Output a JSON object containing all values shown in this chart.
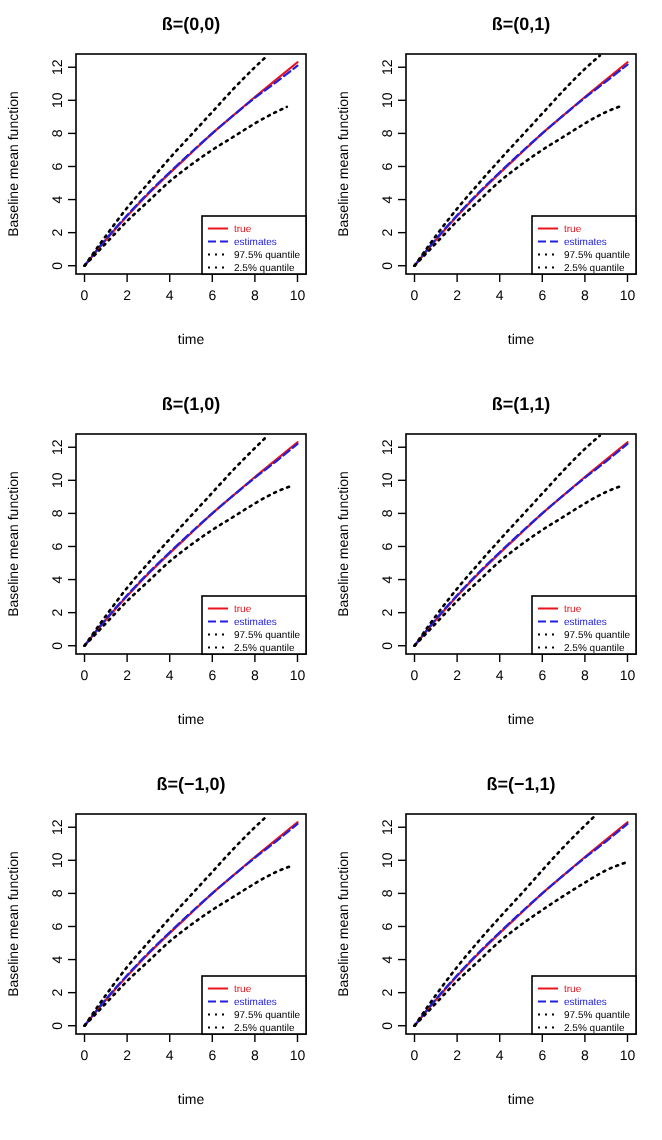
{
  "chart_data": [
    {
      "type": "line",
      "title": "ß=(0,0)",
      "xlabel": "time",
      "ylabel": "Baseline mean function",
      "xlim": [
        -0.4,
        10.4
      ],
      "ylim": [
        -0.5,
        12.8
      ],
      "xticks": [
        0,
        2,
        4,
        6,
        8,
        10
      ],
      "yticks": [
        0,
        2,
        4,
        6,
        8,
        10,
        12
      ],
      "legend": "bottom right",
      "series": [
        {
          "name": "true",
          "color": "#e8141c",
          "line_style": "solid",
          "x": [
            0,
            1,
            2,
            3,
            4,
            5,
            6,
            7,
            8,
            9,
            10
          ],
          "values": [
            0,
            1.55,
            3.0,
            4.35,
            5.6,
            6.8,
            8.0,
            9.1,
            10.2,
            11.25,
            12.3
          ]
        },
        {
          "name": "estimates",
          "color": "#2020e0",
          "line_style": "dashed",
          "x": [
            0,
            1,
            2,
            3,
            4,
            5,
            6,
            7,
            8,
            9,
            10
          ],
          "values": [
            0,
            1.6,
            3.05,
            4.4,
            5.65,
            6.85,
            8.0,
            9.1,
            10.15,
            11.1,
            12.1
          ]
        },
        {
          "name": "97.5% quantile",
          "color": "#000000",
          "line_style": "dotted",
          "x": [
            0,
            1,
            2,
            3,
            4,
            5,
            6,
            7,
            8,
            8.5
          ],
          "values": [
            0,
            1.8,
            3.5,
            5.0,
            6.5,
            7.9,
            9.3,
            10.7,
            12.0,
            12.6
          ]
        },
        {
          "name": "2.5% quantile",
          "color": "#000000",
          "line_style": "dotted",
          "x": [
            0,
            1,
            2,
            3,
            4,
            5,
            6,
            7,
            8,
            9,
            9.5
          ],
          "values": [
            0,
            1.35,
            2.7,
            3.9,
            5.1,
            6.1,
            7.0,
            7.8,
            8.6,
            9.3,
            9.6
          ]
        }
      ]
    },
    {
      "type": "line",
      "title": "ß=(0,1)",
      "xlabel": "time",
      "ylabel": "Baseline mean function",
      "xlim": [
        -0.4,
        10.4
      ],
      "ylim": [
        -0.5,
        12.8
      ],
      "xticks": [
        0,
        2,
        4,
        6,
        8,
        10
      ],
      "yticks": [
        0,
        2,
        4,
        6,
        8,
        10,
        12
      ],
      "legend": "bottom right",
      "series": [
        {
          "name": "true",
          "color": "#e8141c",
          "line_style": "solid",
          "x": [
            0,
            1,
            2,
            3,
            4,
            5,
            6,
            7,
            8,
            9,
            10
          ],
          "values": [
            0,
            1.55,
            3.0,
            4.35,
            5.6,
            6.8,
            8.0,
            9.1,
            10.2,
            11.25,
            12.3
          ]
        },
        {
          "name": "estimates",
          "color": "#2020e0",
          "line_style": "dashed",
          "x": [
            0,
            1,
            2,
            3,
            4,
            5,
            6,
            7,
            8,
            9,
            10
          ],
          "values": [
            0,
            1.6,
            3.05,
            4.4,
            5.65,
            6.85,
            8.0,
            9.1,
            10.15,
            11.15,
            12.15
          ]
        },
        {
          "name": "97.5% quantile",
          "color": "#000000",
          "line_style": "dotted",
          "x": [
            0,
            1,
            2,
            3,
            4,
            5,
            6,
            7,
            8,
            8.7
          ],
          "values": [
            0,
            1.8,
            3.45,
            4.95,
            6.4,
            7.8,
            9.2,
            10.6,
            11.9,
            12.7
          ]
        },
        {
          "name": "2.5% quantile",
          "color": "#000000",
          "line_style": "dotted",
          "x": [
            0,
            1,
            2,
            3,
            4,
            5,
            6,
            7,
            8,
            9,
            9.8
          ],
          "values": [
            0,
            1.35,
            2.7,
            3.9,
            5.1,
            6.1,
            7.0,
            7.8,
            8.6,
            9.3,
            9.7
          ]
        }
      ]
    },
    {
      "type": "line",
      "title": "ß=(1,0)",
      "xlabel": "time",
      "ylabel": "Baseline mean function",
      "xlim": [
        -0.4,
        10.4
      ],
      "ylim": [
        -0.5,
        12.8
      ],
      "xticks": [
        0,
        2,
        4,
        6,
        8,
        10
      ],
      "yticks": [
        0,
        2,
        4,
        6,
        8,
        10,
        12
      ],
      "legend": "bottom right",
      "series": [
        {
          "name": "true",
          "color": "#e8141c",
          "line_style": "solid",
          "x": [
            0,
            1,
            2,
            3,
            4,
            5,
            6,
            7,
            8,
            9,
            10
          ],
          "values": [
            0,
            1.55,
            3.0,
            4.35,
            5.6,
            6.8,
            8.0,
            9.1,
            10.2,
            11.25,
            12.3
          ]
        },
        {
          "name": "estimates",
          "color": "#2020e0",
          "line_style": "dashed",
          "x": [
            0,
            1,
            2,
            3,
            4,
            5,
            6,
            7,
            8,
            9,
            10
          ],
          "values": [
            0,
            1.6,
            3.05,
            4.4,
            5.65,
            6.85,
            8.0,
            9.1,
            10.15,
            11.15,
            12.2
          ]
        },
        {
          "name": "97.5% quantile",
          "color": "#000000",
          "line_style": "dotted",
          "x": [
            0,
            1,
            2,
            3,
            4,
            5,
            6,
            7,
            8,
            8.6
          ],
          "values": [
            0,
            1.8,
            3.5,
            5.0,
            6.45,
            7.85,
            9.25,
            10.65,
            11.95,
            12.7
          ]
        },
        {
          "name": "2.5% quantile",
          "color": "#000000",
          "line_style": "dotted",
          "x": [
            0,
            1,
            2,
            3,
            4,
            5,
            6,
            7,
            8,
            9,
            9.8
          ],
          "values": [
            0,
            1.35,
            2.7,
            3.9,
            5.1,
            6.1,
            7.0,
            7.8,
            8.6,
            9.3,
            9.7
          ]
        }
      ]
    },
    {
      "type": "line",
      "title": "ß=(1,1)",
      "xlabel": "time",
      "ylabel": "Baseline mean function",
      "xlim": [
        -0.4,
        10.4
      ],
      "ylim": [
        -0.5,
        12.8
      ],
      "xticks": [
        0,
        2,
        4,
        6,
        8,
        10
      ],
      "yticks": [
        0,
        2,
        4,
        6,
        8,
        10,
        12
      ],
      "legend": "bottom right",
      "series": [
        {
          "name": "true",
          "color": "#e8141c",
          "line_style": "solid",
          "x": [
            0,
            1,
            2,
            3,
            4,
            5,
            6,
            7,
            8,
            9,
            10
          ],
          "values": [
            0,
            1.55,
            3.0,
            4.35,
            5.6,
            6.8,
            8.0,
            9.1,
            10.2,
            11.25,
            12.3
          ]
        },
        {
          "name": "estimates",
          "color": "#2020e0",
          "line_style": "dashed",
          "x": [
            0,
            1,
            2,
            3,
            4,
            5,
            6,
            7,
            8,
            9,
            10
          ],
          "values": [
            0,
            1.6,
            3.05,
            4.4,
            5.65,
            6.85,
            8.0,
            9.1,
            10.15,
            11.15,
            12.2
          ]
        },
        {
          "name": "97.5% quantile",
          "color": "#000000",
          "line_style": "dotted",
          "x": [
            0,
            1,
            2,
            3,
            4,
            5,
            6,
            7,
            8,
            8.7
          ],
          "values": [
            0,
            1.8,
            3.45,
            4.95,
            6.4,
            7.8,
            9.2,
            10.6,
            11.9,
            12.7
          ]
        },
        {
          "name": "2.5% quantile",
          "color": "#000000",
          "line_style": "dotted",
          "x": [
            0,
            1,
            2,
            3,
            4,
            5,
            6,
            7,
            8,
            9,
            9.8
          ],
          "values": [
            0,
            1.35,
            2.7,
            3.9,
            5.1,
            6.1,
            7.0,
            7.8,
            8.6,
            9.3,
            9.7
          ]
        }
      ]
    },
    {
      "type": "line",
      "title": "ß=(−1,0)",
      "xlabel": "time",
      "ylabel": "Baseline mean function",
      "xlim": [
        -0.4,
        10.4
      ],
      "ylim": [
        -0.5,
        12.8
      ],
      "xticks": [
        0,
        2,
        4,
        6,
        8,
        10
      ],
      "yticks": [
        0,
        2,
        4,
        6,
        8,
        10,
        12
      ],
      "legend": "bottom right",
      "series": [
        {
          "name": "true",
          "color": "#e8141c",
          "line_style": "solid",
          "x": [
            0,
            1,
            2,
            3,
            4,
            5,
            6,
            7,
            8,
            9,
            10
          ],
          "values": [
            0,
            1.55,
            3.0,
            4.35,
            5.6,
            6.8,
            8.0,
            9.1,
            10.2,
            11.25,
            12.3
          ]
        },
        {
          "name": "estimates",
          "color": "#2020e0",
          "line_style": "dashed",
          "x": [
            0,
            1,
            2,
            3,
            4,
            5,
            6,
            7,
            8,
            9,
            10
          ],
          "values": [
            0,
            1.6,
            3.05,
            4.4,
            5.65,
            6.85,
            8.0,
            9.1,
            10.15,
            11.15,
            12.2
          ]
        },
        {
          "name": "97.5% quantile",
          "color": "#000000",
          "line_style": "dotted",
          "x": [
            0,
            1,
            2,
            3,
            4,
            5,
            6,
            7,
            8,
            8.5
          ],
          "values": [
            0,
            1.85,
            3.55,
            5.05,
            6.5,
            7.9,
            9.3,
            10.7,
            12.0,
            12.6
          ]
        },
        {
          "name": "2.5% quantile",
          "color": "#000000",
          "line_style": "dotted",
          "x": [
            0,
            1,
            2,
            3,
            4,
            5,
            6,
            7,
            8,
            9,
            9.8
          ],
          "values": [
            0,
            1.35,
            2.7,
            3.9,
            5.1,
            6.1,
            7.0,
            7.8,
            8.6,
            9.3,
            9.7
          ]
        }
      ]
    },
    {
      "type": "line",
      "title": "ß=(−1,1)",
      "xlabel": "time",
      "ylabel": "Baseline mean function",
      "xlim": [
        -0.4,
        10.4
      ],
      "ylim": [
        -0.5,
        12.8
      ],
      "xticks": [
        0,
        2,
        4,
        6,
        8,
        10
      ],
      "yticks": [
        0,
        2,
        4,
        6,
        8,
        10,
        12
      ],
      "legend": "bottom right",
      "series": [
        {
          "name": "true",
          "color": "#e8141c",
          "line_style": "solid",
          "x": [
            0,
            1,
            2,
            3,
            4,
            5,
            6,
            7,
            8,
            9,
            10
          ],
          "values": [
            0,
            1.55,
            3.0,
            4.35,
            5.6,
            6.8,
            8.0,
            9.1,
            10.2,
            11.25,
            12.3
          ]
        },
        {
          "name": "estimates",
          "color": "#2020e0",
          "line_style": "dashed",
          "x": [
            0,
            1,
            2,
            3,
            4,
            5,
            6,
            7,
            8,
            9,
            10
          ],
          "values": [
            0,
            1.6,
            3.05,
            4.4,
            5.65,
            6.85,
            8.0,
            9.1,
            10.15,
            11.15,
            12.2
          ]
        },
        {
          "name": "97.5% quantile",
          "color": "#000000",
          "line_style": "dotted",
          "x": [
            0,
            1,
            2,
            3,
            4,
            5,
            6,
            7,
            8,
            8.4
          ],
          "values": [
            0,
            1.85,
            3.55,
            5.1,
            6.55,
            7.95,
            9.4,
            10.8,
            12.1,
            12.6
          ]
        },
        {
          "name": "2.5% quantile",
          "color": "#000000",
          "line_style": "dotted",
          "x": [
            0,
            1,
            2,
            3,
            4,
            5,
            6,
            7,
            8,
            9,
            10
          ],
          "values": [
            0,
            1.35,
            2.7,
            3.9,
            5.1,
            6.1,
            7.0,
            7.85,
            8.65,
            9.4,
            9.9
          ]
        }
      ]
    }
  ]
}
